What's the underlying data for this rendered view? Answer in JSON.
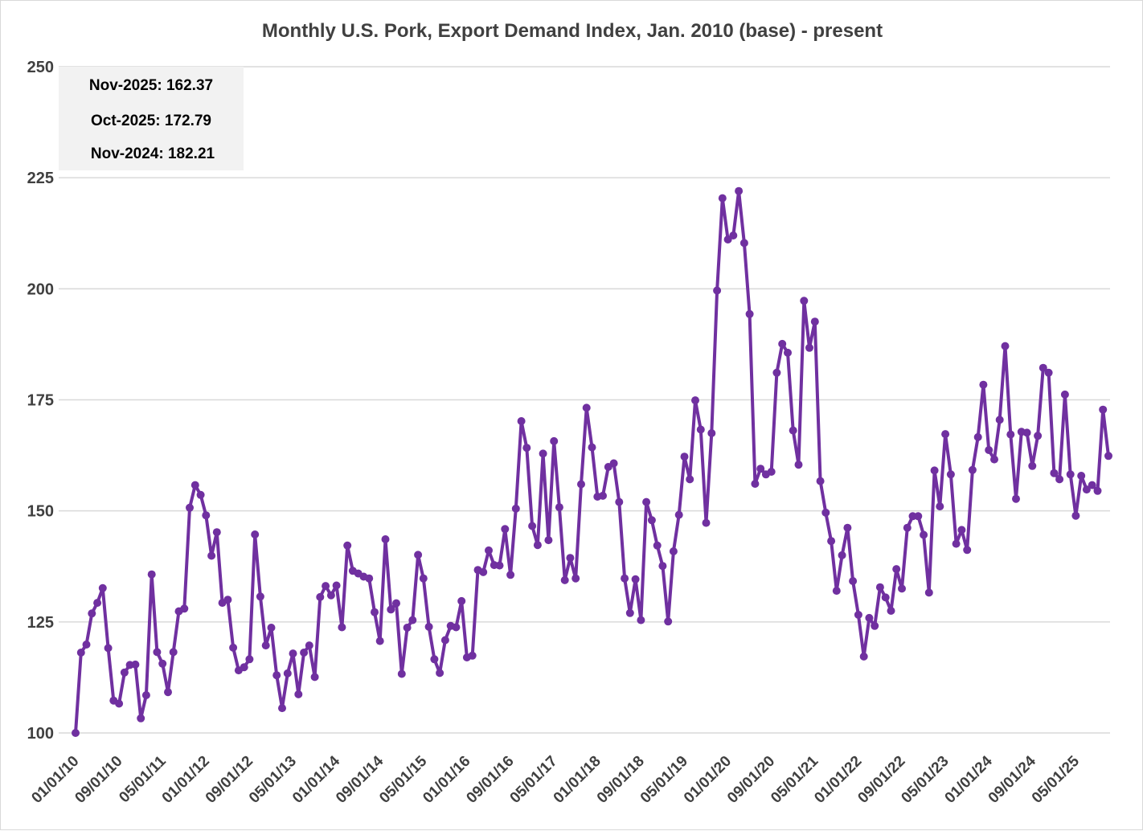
{
  "chart_data": {
    "type": "line",
    "title": "Monthly U.S. Pork, Export Demand Index, Jan. 2010 (base) - present",
    "xlabel": "",
    "ylabel": "",
    "ylim": [
      100,
      250
    ],
    "yticks": [
      100,
      125,
      150,
      175,
      200,
      225,
      250
    ],
    "grid": true,
    "line_color": "#7030a0",
    "x_tick_labels": [
      "01/01/10",
      "09/01/10",
      "05/01/11",
      "01/01/12",
      "09/01/12",
      "05/01/13",
      "01/01/14",
      "09/01/14",
      "05/01/15",
      "01/01/16",
      "09/01/16",
      "05/01/17",
      "01/01/18",
      "09/01/18",
      "05/01/19",
      "01/01/20",
      "09/01/20",
      "05/01/21",
      "01/01/22",
      "09/01/22",
      "05/01/23",
      "01/01/24",
      "09/01/24",
      "05/01/25"
    ],
    "start_month": "01/01/10",
    "series": [
      {
        "values": [
          100.0,
          118.1,
          119.9,
          126.9,
          129.3,
          132.6,
          119.1,
          107.3,
          106.6,
          113.6,
          115.3,
          115.4,
          103.3,
          108.5,
          135.7,
          118.2,
          115.6,
          109.2,
          118.2,
          127.4,
          128.0,
          150.7,
          155.8,
          153.6,
          149.0,
          139.9,
          145.2,
          129.3,
          130.0,
          119.2,
          114.1,
          114.8,
          116.6,
          144.7,
          130.7,
          119.7,
          123.7,
          113.0,
          105.6,
          113.4,
          117.9,
          108.7,
          118.1,
          119.7,
          112.6,
          130.6,
          133.1,
          131.0,
          133.2,
          123.8,
          142.2,
          136.5,
          135.9,
          135.2,
          134.8,
          127.2,
          120.7,
          143.6,
          127.8,
          129.2,
          113.3,
          123.7,
          125.4,
          140.1,
          134.8,
          123.9,
          116.6,
          113.5,
          120.9,
          124.1,
          123.8,
          129.7,
          117.0,
          117.4,
          136.7,
          136.2,
          141.1,
          137.8,
          137.7,
          145.9,
          135.6,
          150.5,
          170.2,
          164.2,
          146.6,
          142.3,
          162.9,
          143.4,
          165.7,
          150.8,
          134.4,
          139.4,
          134.8,
          156.0,
          173.2,
          164.3,
          153.2,
          153.4,
          159.9,
          160.7,
          152.0,
          134.8,
          127.0,
          134.6,
          125.4,
          152.0,
          147.9,
          142.2,
          137.6,
          125.1,
          140.9,
          149.1,
          162.2,
          157.1,
          174.9,
          168.3,
          147.3,
          167.5,
          199.6,
          220.4,
          211.1,
          212.0,
          222.0,
          210.3,
          194.3,
          156.1,
          159.5,
          158.2,
          158.8,
          181.1,
          187.6,
          185.6,
          168.1,
          160.4,
          197.3,
          186.7,
          192.6,
          156.7,
          149.6,
          143.2,
          132.0,
          140.0,
          146.2,
          134.2,
          126.6,
          117.2,
          125.9,
          124.1,
          132.8,
          130.5,
          127.5,
          136.9,
          132.5,
          146.2,
          148.8,
          148.8,
          144.6,
          131.6,
          159.1,
          151.0,
          167.3,
          158.2,
          142.6,
          145.7,
          141.2,
          159.2,
          166.6,
          178.4,
          163.7,
          161.6,
          170.5,
          187.1,
          167.2,
          152.7,
          167.8,
          167.6,
          160.1,
          166.9,
          182.2,
          181.1,
          158.5,
          157.1,
          176.2,
          158.2,
          148.9,
          157.9,
          154.8,
          155.8,
          154.5,
          172.79,
          162.37
        ]
      }
    ]
  },
  "annotations": [
    {
      "label": "Nov-2025: 162.37"
    },
    {
      "label": "Oct-2025: 172.79"
    },
    {
      "label": "Nov-2024: 182.21"
    }
  ],
  "colors": {
    "line": "#7030a0",
    "grid": "#d9d9d9",
    "annotation_box": "#f2f2f2",
    "text": "#404040"
  }
}
